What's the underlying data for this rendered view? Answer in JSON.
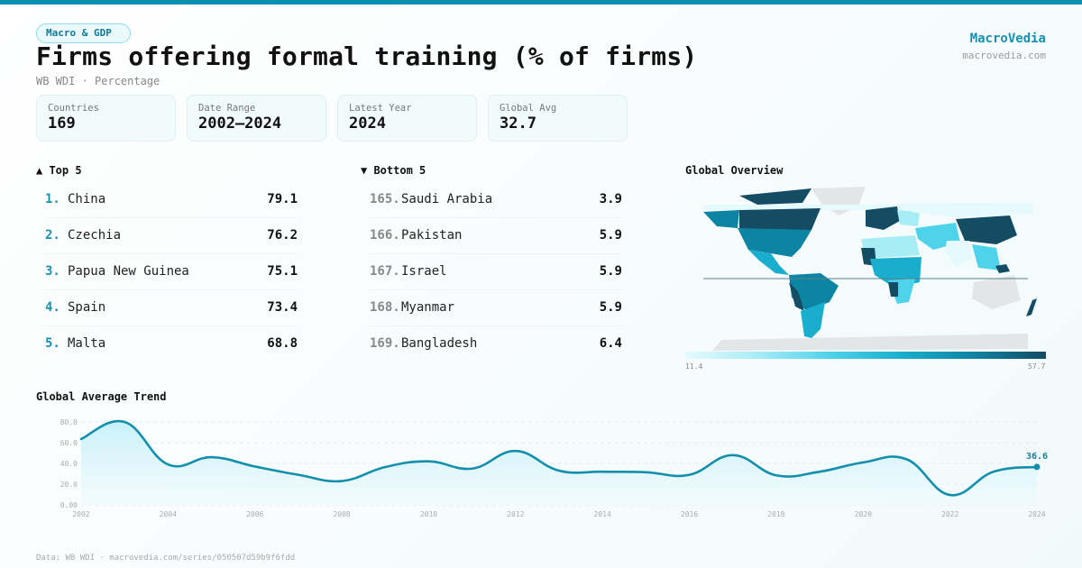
{
  "header": {
    "category_badge": "Macro & GDP",
    "title": "Firms offering formal training (% of firms)",
    "subtitle": "WB WDI · Percentage",
    "brand_name": "MacroVedia",
    "brand_url": "macrovedia.com"
  },
  "stats": [
    {
      "label": "Countries",
      "value": "169"
    },
    {
      "label": "Date Range",
      "value": "2002–2024"
    },
    {
      "label": "Latest Year",
      "value": "2024"
    },
    {
      "label": "Global Avg",
      "value": "32.7"
    }
  ],
  "top5": {
    "title": "▲ Top 5",
    "items": [
      {
        "rank": "1.",
        "name": "China",
        "value": "79.1"
      },
      {
        "rank": "2.",
        "name": "Czechia",
        "value": "76.2"
      },
      {
        "rank": "3.",
        "name": "Papua New Guinea",
        "value": "75.1"
      },
      {
        "rank": "4.",
        "name": "Spain",
        "value": "73.4"
      },
      {
        "rank": "5.",
        "name": "Malta",
        "value": "68.8"
      }
    ]
  },
  "bottom5": {
    "title": "▼ Bottom 5",
    "items": [
      {
        "rank": "165.",
        "name": "Saudi Arabia",
        "value": "3.9"
      },
      {
        "rank": "166.",
        "name": "Pakistan",
        "value": "5.9"
      },
      {
        "rank": "167.",
        "name": "Israel",
        "value": "5.9"
      },
      {
        "rank": "168.",
        "name": "Myanmar",
        "value": "5.9"
      },
      {
        "rank": "169.",
        "name": "Bangladesh",
        "value": "6.4"
      }
    ]
  },
  "map": {
    "title": "Global Overview",
    "legend_min": "11.4",
    "legend_max": "57.7",
    "colors": {
      "no_data": "#e3e6e8",
      "low": "#e6fafd",
      "light": "#a8ecf6",
      "mid": "#4fd3ea",
      "midhigh": "#19aecd",
      "high": "#0e84a3",
      "max": "#134c63"
    }
  },
  "trend": {
    "title": "Global Average Trend",
    "last_label": "36.6"
  },
  "footer": {
    "source": "Data: WB WDI · macrovedia.com/series/050507d59b9f6fdd"
  },
  "colors": {
    "accent": "#0b8fb1",
    "line": "#138fae",
    "area_top": "#bfeef7",
    "area_bottom": "#effbfd"
  },
  "chart_data": {
    "type": "line",
    "title": "Global Average Trend",
    "xlabel": "",
    "ylabel": "",
    "x": [
      2002,
      2003,
      2004,
      2005,
      2006,
      2007,
      2008,
      2009,
      2010,
      2011,
      2012,
      2013,
      2014,
      2015,
      2016,
      2017,
      2018,
      2019,
      2020,
      2021,
      2022,
      2023,
      2024
    ],
    "values": [
      63.5,
      80.0,
      39.0,
      46.0,
      37.0,
      29.0,
      23.0,
      36.5,
      42.0,
      35.0,
      52.0,
      33.0,
      32.0,
      31.5,
      29.0,
      48.0,
      28.5,
      32.0,
      41.0,
      44.0,
      9.5,
      32.0,
      36.6
    ],
    "x_ticks": [
      "2002",
      "2004",
      "2006",
      "2008",
      "2010",
      "2012",
      "2014",
      "2016",
      "2018",
      "2020",
      "2022",
      "2024"
    ],
    "y_ticks": [
      "0.00",
      "20.0",
      "40.0",
      "60.0",
      "80.0"
    ],
    "ylim": [
      0,
      80
    ],
    "grid": true,
    "annotation": {
      "x": 2024,
      "label": "36.6"
    }
  }
}
